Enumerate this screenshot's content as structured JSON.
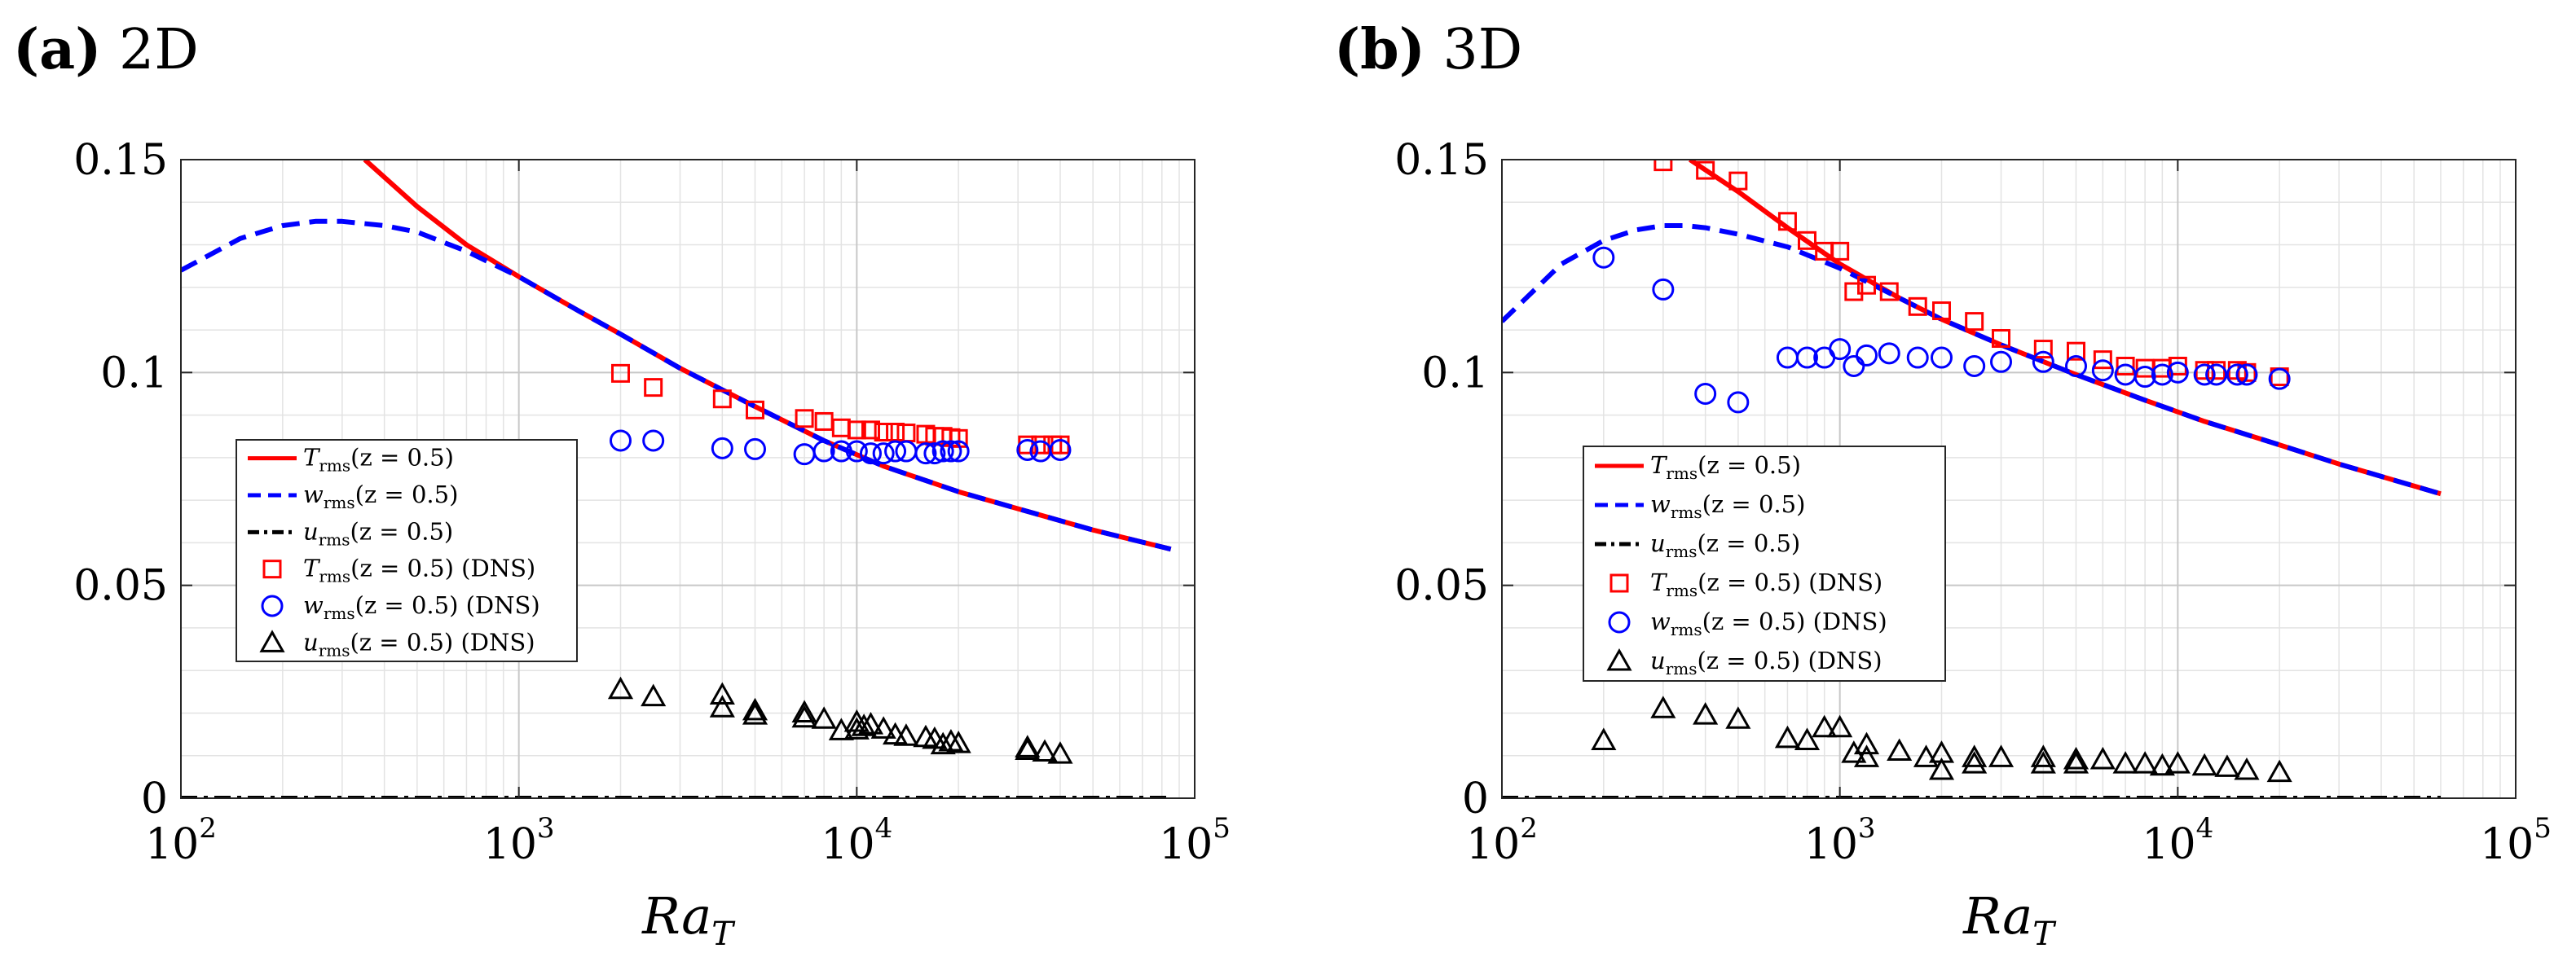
{
  "chart_data": [
    {
      "type": "line",
      "panel_label": "(a)",
      "title": "2D",
      "xlabel": "Ra",
      "xlabel_sub": "T",
      "xscale": "log",
      "xlim": [
        100,
        100000
      ],
      "ylim": [
        0,
        0.15
      ],
      "xticks": [
        {
          "base": "10",
          "exp": "2",
          "value": 100
        },
        {
          "base": "10",
          "exp": "3",
          "value": 1000
        },
        {
          "base": "10",
          "exp": "4",
          "value": 10000
        },
        {
          "base": "10",
          "exp": "5",
          "value": 100000
        }
      ],
      "yticks": [
        {
          "label": "0",
          "value": 0
        },
        {
          "label": "0.05",
          "value": 0.05
        },
        {
          "label": "0.1",
          "value": 0.1
        },
        {
          "label": "0.15",
          "value": 0.15
        }
      ],
      "grid": true,
      "legend_location": "center-left",
      "series": [
        {
          "id": "T_model",
          "kind": "line",
          "style": "solid",
          "color": "#ff0000",
          "legend": {
            "sym": "T",
            "sub": "rms",
            "rest": "(z = 0.5)",
            "extra": ""
          },
          "x": [
            350,
            500,
            700,
            1000,
            1500,
            2000,
            3000,
            5000,
            8000,
            12000,
            20000,
            30000,
            50000,
            85000
          ],
          "y": [
            0.15,
            0.139,
            0.13,
            0.1225,
            0.1145,
            0.109,
            0.101,
            0.092,
            0.084,
            0.078,
            0.072,
            0.068,
            0.063,
            0.0585
          ]
        },
        {
          "id": "w_model",
          "kind": "line",
          "style": "dashed",
          "color": "#0000ff",
          "legend": {
            "sym": "w",
            "sub": "rms",
            "rest": "(z = 0.5)",
            "extra": ""
          },
          "x": [
            100,
            150,
            200,
            250,
            300,
            400,
            500,
            700,
            1000,
            1500,
            2000,
            3000,
            5000,
            8000,
            12000,
            20000,
            30000,
            50000,
            85000
          ],
          "y": [
            0.124,
            0.1315,
            0.1345,
            0.1355,
            0.1355,
            0.1345,
            0.133,
            0.1285,
            0.1225,
            0.1145,
            0.109,
            0.101,
            0.092,
            0.084,
            0.078,
            0.072,
            0.068,
            0.063,
            0.0585
          ]
        },
        {
          "id": "u_model",
          "kind": "line",
          "style": "dashdot",
          "color": "#000000",
          "legend": {
            "sym": "u",
            "sub": "rms",
            "rest": "(z = 0.5)",
            "extra": ""
          },
          "x": [
            100,
            85000
          ],
          "y": [
            0,
            0
          ]
        },
        {
          "id": "T_dns",
          "kind": "marker",
          "marker": "square",
          "color": "#ff0000",
          "legend": {
            "sym": "T",
            "sub": "rms",
            "rest": "(z = 0.5)",
            "extra": "(DNS)"
          },
          "x": [
            2000,
            2500,
            4000,
            5000,
            7000,
            8000,
            9000,
            10000,
            11000,
            12000,
            13000,
            14000,
            16000,
            17000,
            18000,
            19000,
            20000,
            32000,
            35000,
            38000,
            40000
          ],
          "y": [
            0.0998,
            0.0965,
            0.0938,
            0.0912,
            0.0892,
            0.0885,
            0.087,
            0.0865,
            0.0865,
            0.086,
            0.086,
            0.0858,
            0.0855,
            0.085,
            0.085,
            0.0847,
            0.0845,
            0.083,
            0.083,
            0.083,
            0.083
          ]
        },
        {
          "id": "w_dns",
          "kind": "marker",
          "marker": "circle",
          "color": "#0000ff",
          "legend": {
            "sym": "w",
            "sub": "rms",
            "rest": "(z = 0.5)",
            "extra": "(DNS)"
          },
          "x": [
            2000,
            2500,
            4000,
            5000,
            7000,
            8000,
            9000,
            10000,
            11000,
            12000,
            13000,
            14000,
            16000,
            17000,
            18000,
            19000,
            20000,
            32000,
            35000,
            40000
          ],
          "y": [
            0.084,
            0.084,
            0.0822,
            0.082,
            0.0808,
            0.0815,
            0.0815,
            0.0815,
            0.081,
            0.081,
            0.0815,
            0.0815,
            0.081,
            0.081,
            0.0815,
            0.0815,
            0.0815,
            0.0818,
            0.0815,
            0.0818
          ]
        },
        {
          "id": "u_dns",
          "kind": "marker",
          "marker": "triangle",
          "color": "#000000",
          "legend": {
            "sym": "u",
            "sub": "rms",
            "rest": "(z = 0.5)",
            "extra": "(DNS)"
          },
          "x": [
            2000,
            2500,
            4000,
            4000,
            5000,
            5000,
            7000,
            7000,
            8000,
            9000,
            10000,
            10000,
            10500,
            11000,
            12000,
            13000,
            14000,
            16000,
            17000,
            18000,
            19000,
            20000,
            32000,
            32000,
            36000,
            40000
          ],
          "y": [
            0.0255,
            0.0238,
            0.0242,
            0.0212,
            0.0205,
            0.0195,
            0.02,
            0.0188,
            0.0185,
            0.0158,
            0.0178,
            0.016,
            0.0168,
            0.0172,
            0.0162,
            0.0148,
            0.0145,
            0.0142,
            0.0138,
            0.0125,
            0.0132,
            0.0128,
            0.0118,
            0.0112,
            0.0108,
            0.0103
          ]
        }
      ]
    },
    {
      "type": "line",
      "panel_label": "(b)",
      "title": "3D",
      "xlabel": "Ra",
      "xlabel_sub": "T",
      "xscale": "log",
      "xlim": [
        100,
        100000
      ],
      "ylim": [
        0,
        0.15
      ],
      "xticks": [
        {
          "base": "10",
          "exp": "2",
          "value": 100
        },
        {
          "base": "10",
          "exp": "3",
          "value": 1000
        },
        {
          "base": "10",
          "exp": "4",
          "value": 10000
        },
        {
          "base": "10",
          "exp": "5",
          "value": 100000
        }
      ],
      "yticks": [
        {
          "label": "0",
          "value": 0
        },
        {
          "label": "0.05",
          "value": 0.05
        },
        {
          "label": "0.1",
          "value": 0.1
        },
        {
          "label": "0.15",
          "value": 0.15
        }
      ],
      "grid": true,
      "legend_location": "center-left",
      "series": [
        {
          "id": "T_model",
          "kind": "line",
          "style": "solid",
          "color": "#ff0000",
          "legend": {
            "sym": "T",
            "sub": "rms",
            "rest": "(z = 0.5)",
            "extra": ""
          },
          "x": [
            360,
            500,
            700,
            1000,
            1500,
            2000,
            3000,
            5000,
            8000,
            12000,
            20000,
            30000,
            60000
          ],
          "y": [
            0.15,
            0.1425,
            0.134,
            0.1255,
            0.1175,
            0.1125,
            0.1065,
            0.0995,
            0.0935,
            0.0885,
            0.083,
            0.0785,
            0.0715
          ]
        },
        {
          "id": "w_model",
          "kind": "line",
          "style": "dashed",
          "color": "#0000ff",
          "legend": {
            "sym": "w",
            "sub": "rms",
            "rest": "(z = 0.5)",
            "extra": ""
          },
          "x": [
            100,
            150,
            200,
            250,
            300,
            350,
            400,
            500,
            700,
            1000,
            1500,
            2000,
            3000,
            5000,
            8000,
            12000,
            20000,
            30000,
            60000
          ],
          "y": [
            0.112,
            0.1255,
            0.131,
            0.1335,
            0.1345,
            0.1345,
            0.134,
            0.1325,
            0.1295,
            0.1245,
            0.1175,
            0.1125,
            0.1065,
            0.0995,
            0.0935,
            0.0885,
            0.083,
            0.0785,
            0.0715
          ]
        },
        {
          "id": "u_model",
          "kind": "line",
          "style": "dashdot",
          "color": "#000000",
          "legend": {
            "sym": "u",
            "sub": "rms",
            "rest": "(z = 0.5)",
            "extra": ""
          },
          "x": [
            100,
            60000
          ],
          "y": [
            0,
            0
          ]
        },
        {
          "id": "T_dns",
          "kind": "marker",
          "marker": "square",
          "color": "#ff0000",
          "legend": {
            "sym": "T",
            "sub": "rms",
            "rest": "(z = 0.5)",
            "extra": "(DNS)"
          },
          "x": [
            300,
            400,
            500,
            700,
            800,
            900,
            1000,
            1100,
            1200,
            1400,
            1700,
            2000,
            2500,
            3000,
            4000,
            5000,
            6000,
            7000,
            8000,
            9000,
            10000,
            12000,
            13000,
            15000,
            16000,
            20000
          ],
          "y": [
            0.1495,
            0.1475,
            0.145,
            0.1355,
            0.131,
            0.1285,
            0.1285,
            0.119,
            0.1205,
            0.119,
            0.1155,
            0.1145,
            0.112,
            0.108,
            0.1055,
            0.105,
            0.103,
            0.1015,
            0.101,
            0.101,
            0.1015,
            0.1005,
            0.1005,
            0.1005,
            0.1,
            0.099
          ]
        },
        {
          "id": "w_dns",
          "kind": "marker",
          "marker": "circle",
          "color": "#0000ff",
          "legend": {
            "sym": "w",
            "sub": "rms",
            "rest": "(z = 0.5)",
            "extra": "(DNS)"
          },
          "x": [
            200,
            300,
            400,
            500,
            700,
            800,
            900,
            1000,
            1100,
            1200,
            1400,
            1700,
            2000,
            2500,
            3000,
            4000,
            5000,
            6000,
            7000,
            8000,
            9000,
            10000,
            12000,
            13000,
            15000,
            16000,
            20000
          ],
          "y": [
            0.127,
            0.1195,
            0.095,
            0.093,
            0.1035,
            0.1035,
            0.1035,
            0.1055,
            0.1015,
            0.104,
            0.1045,
            0.1035,
            0.1035,
            0.1015,
            0.1025,
            0.1025,
            0.1015,
            0.1005,
            0.0995,
            0.099,
            0.0995,
            0.1,
            0.0995,
            0.0995,
            0.0995,
            0.0995,
            0.0985
          ]
        },
        {
          "id": "u_dns",
          "kind": "marker",
          "marker": "triangle",
          "color": "#000000",
          "legend": {
            "sym": "u",
            "sub": "rms",
            "rest": "(z = 0.5)",
            "extra": "(DNS)"
          },
          "x": [
            200,
            300,
            400,
            500,
            700,
            800,
            900,
            1000,
            1100,
            1200,
            1200,
            1500,
            1800,
            2000,
            2000,
            2500,
            2500,
            3000,
            4000,
            4000,
            5000,
            5000,
            6000,
            7000,
            8000,
            9000,
            10000,
            12000,
            14000,
            16000,
            20000
          ],
          "y": [
            0.0135,
            0.021,
            0.0195,
            0.0185,
            0.014,
            0.0135,
            0.0165,
            0.0165,
            0.0105,
            0.0125,
            0.0095,
            0.011,
            0.0095,
            0.0105,
            0.0065,
            0.0095,
            0.008,
            0.0095,
            0.0095,
            0.008,
            0.009,
            0.008,
            0.009,
            0.008,
            0.008,
            0.0075,
            0.008,
            0.0075,
            0.0072,
            0.0065,
            0.006
          ]
        }
      ]
    }
  ]
}
